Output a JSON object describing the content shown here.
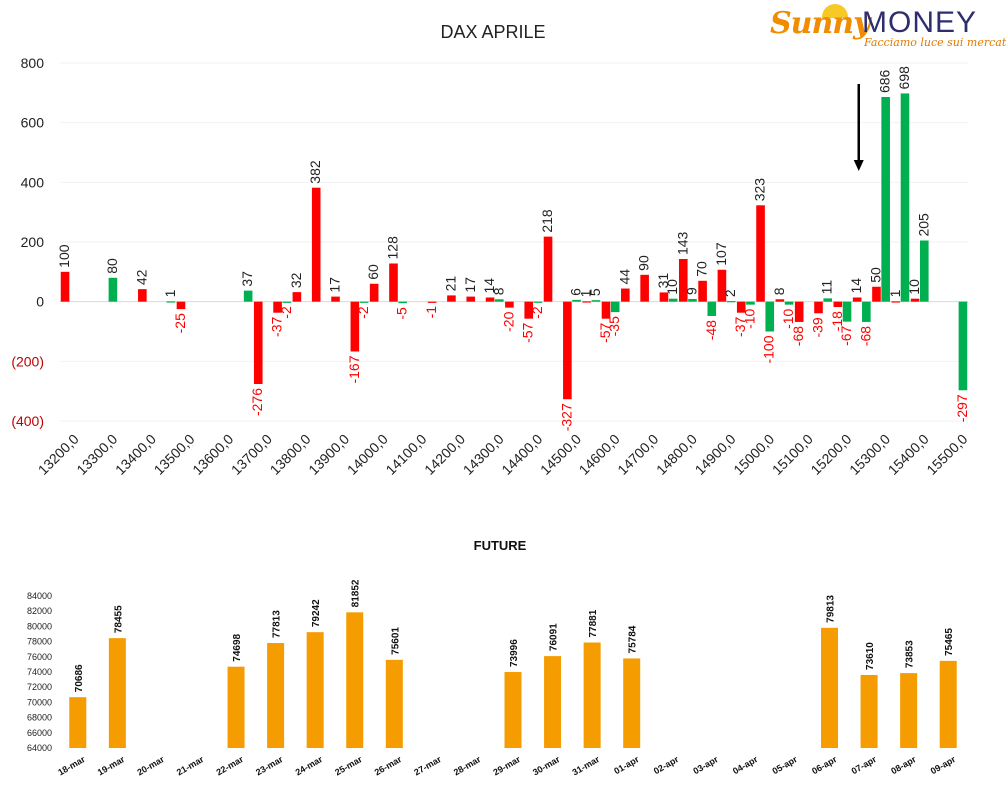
{
  "logo": {
    "brand_a": "Sunny",
    "brand_b": "MONEY",
    "tagline": "Facciamo luce sui mercati"
  },
  "colors": {
    "positive": "#00b050",
    "negative": "#ff0000",
    "future": "#f59c00",
    "arrow": "#000000"
  },
  "chart_data": [
    {
      "type": "bar",
      "title": "DAX APRILE",
      "ylim": [
        -400,
        800
      ],
      "yticks": [
        "800",
        "600",
        "400",
        "200",
        "0",
        "(200)",
        "(400)"
      ],
      "yticks_values": [
        800,
        600,
        400,
        200,
        0,
        -200,
        -400
      ],
      "x_labels": [
        "13200,0",
        "13300,0",
        "13400,0",
        "13500,0",
        "13600,0",
        "13700,0",
        "13800,0",
        "13900,0",
        "14000,0",
        "14100,0",
        "14200,0",
        "14300,0",
        "14400,0",
        "14500,0",
        "14600,0",
        "14700,0",
        "14800,0",
        "14900,0",
        "15000,0",
        "15100,0",
        "15200,0",
        "15300,0",
        "15400,0",
        "15500,0"
      ],
      "strikes": [
        13200,
        13250,
        13300,
        13350,
        13400,
        13450,
        13500,
        13550,
        13600,
        13650,
        13700,
        13750,
        13800,
        13850,
        13900,
        13950,
        14000,
        14050,
        14100,
        14150,
        14200,
        14250,
        14300,
        14350,
        14400,
        14450,
        14500,
        14550,
        14600,
        14650,
        14700,
        14750,
        14800,
        14850,
        14900,
        14950,
        15000,
        15050,
        15100,
        15150,
        15200,
        15250,
        15300,
        15350,
        15400,
        15450,
        15500
      ],
      "series": [
        {
          "color": "red",
          "values": [
            100,
            null,
            null,
            null,
            42,
            null,
            -25,
            null,
            null,
            null,
            -276,
            -37,
            32,
            382,
            17,
            -167,
            60,
            128,
            null,
            -1,
            21,
            17,
            14,
            -20,
            -57,
            218,
            -327,
            1,
            -57,
            44,
            90,
            31,
            143,
            70,
            107,
            -37,
            323,
            8,
            -68,
            -39,
            -18,
            14,
            50,
            1,
            10,
            null,
            null
          ],
          "labels": [
            "100",
            "",
            "",
            "",
            "42",
            "",
            "-25",
            "",
            "",
            "",
            "-276",
            "-37",
            "32",
            "382",
            "17",
            "-167",
            "60",
            "128",
            "",
            "-1",
            "21",
            "17",
            "14",
            "-20",
            "-57",
            "218",
            "-327",
            "1",
            "-57",
            "44",
            "90",
            "31",
            "143",
            "70",
            "107",
            "-37",
            "323",
            "8",
            "-68",
            "-39",
            "-18",
            "14",
            "50",
            "1",
            "10",
            "",
            ""
          ]
        },
        {
          "color": "green",
          "values": [
            null,
            null,
            80,
            null,
            null,
            1,
            null,
            null,
            null,
            37,
            null,
            -2,
            null,
            null,
            null,
            -2,
            null,
            -5,
            null,
            null,
            null,
            null,
            8,
            null,
            -2,
            null,
            6,
            5,
            -35,
            null,
            null,
            10,
            9,
            -48,
            2,
            -10,
            -100,
            -10,
            null,
            11,
            -67,
            -68,
            686,
            698,
            205,
            null,
            -297
          ],
          "labels": [
            "",
            "",
            "80",
            "",
            "",
            "1",
            "",
            "",
            "",
            "37",
            "",
            "-2",
            "",
            "",
            "",
            "-2",
            "",
            "-5",
            "",
            "",
            "",
            "",
            "8",
            "",
            "-2",
            "",
            "6",
            "5",
            "-35",
            "",
            "",
            "10",
            "9",
            "-48",
            "2",
            "-10",
            "-100",
            "-10",
            "",
            "11",
            "-67",
            "-68",
            "686",
            "698",
            "205",
            "",
            "-297"
          ]
        }
      ],
      "annotation": "arrow pointing down above the 15250 strike"
    },
    {
      "type": "bar",
      "title": "FUTURE",
      "ylim": [
        64000,
        84000
      ],
      "yticks": [
        "84000",
        "82000",
        "80000",
        "78000",
        "76000",
        "74000",
        "72000",
        "70000",
        "68000",
        "66000",
        "64000"
      ],
      "yticks_values": [
        84000,
        82000,
        80000,
        78000,
        76000,
        74000,
        72000,
        70000,
        68000,
        66000,
        64000
      ],
      "categories": [
        "18-mar",
        "19-mar",
        "20-mar",
        "21-mar",
        "22-mar",
        "23-mar",
        "24-mar",
        "25-mar",
        "26-mar",
        "27-mar",
        "28-mar",
        "29-mar",
        "30-mar",
        "31-mar",
        "01-apr",
        "02-apr",
        "03-apr",
        "04-apr",
        "05-apr",
        "06-apr",
        "07-apr",
        "08-apr",
        "09-apr"
      ],
      "values": [
        70686,
        78455,
        null,
        null,
        74698,
        77813,
        79242,
        81852,
        75601,
        null,
        null,
        73996,
        76091,
        77881,
        75784,
        null,
        null,
        null,
        null,
        79813,
        73610,
        73853,
        75465
      ],
      "labels": [
        "70686",
        "78455",
        "",
        "",
        "74698",
        "77813",
        "79242",
        "81852",
        "75601",
        "",
        "",
        "73996",
        "76091",
        "77881",
        "75784",
        "",
        "",
        "",
        "",
        "79813",
        "73610",
        "73853",
        "75465"
      ]
    }
  ]
}
